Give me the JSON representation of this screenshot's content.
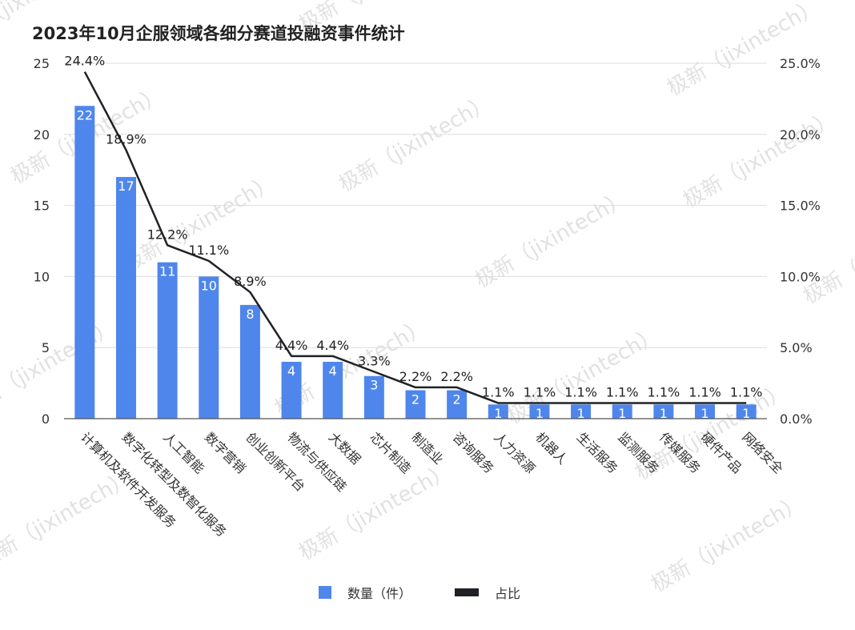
{
  "title": "2023年10月企服领域各细分赛道投融资事件统计",
  "watermark": "极新（jixintech）",
  "colors": {
    "bar": "#4f86ec",
    "line": "#1f2126",
    "grid": "#dddddd",
    "axis": "#555555"
  },
  "legend": [
    {
      "label": "数量（件）",
      "kind": "bar",
      "color": "#4f86ec"
    },
    {
      "label": "占比",
      "kind": "line",
      "color": "#1f2126"
    }
  ],
  "chart_data": {
    "type": "bar",
    "title": "2023年10月企服领域各细分赛道投融资事件统计",
    "categories": [
      "计算机及软件开发服务",
      "数字化转型及数智化服务",
      "人工智能",
      "数字营销",
      "创业创新平台",
      "物流与供应链",
      "大数据",
      "芯片制造",
      "制造业",
      "咨询服务",
      "人力资源",
      "机器人",
      "生活服务",
      "监测服务",
      "传媒服务",
      "硬件产品",
      "网络安全"
    ],
    "series": [
      {
        "name": "数量（件）",
        "type": "bar",
        "axis": "left",
        "values": [
          22,
          17,
          11,
          10,
          8,
          4,
          4,
          3,
          2,
          2,
          1,
          1,
          1,
          1,
          1,
          1,
          1
        ]
      },
      {
        "name": "占比",
        "type": "line",
        "axis": "right",
        "values": [
          24.4,
          18.9,
          12.2,
          11.1,
          8.9,
          4.4,
          4.4,
          3.3,
          2.2,
          2.2,
          1.1,
          1.1,
          1.1,
          1.1,
          1.1,
          1.1,
          1.1
        ],
        "labels": [
          "24.4%",
          "18.9%",
          "12.2%",
          "11.1%",
          "8.9%",
          "4.4%",
          "4.4%",
          "3.3%",
          "2.2%",
          "2.2%",
          "1.1%",
          "1.1%",
          "1.1%",
          "1.1%",
          "1.1%",
          "1.1%",
          "1.1%"
        ]
      }
    ],
    "y_left": {
      "ticks": [
        "0",
        "5",
        "10",
        "15",
        "20",
        "25"
      ],
      "range": [
        0,
        25
      ]
    },
    "y_right": {
      "ticks": [
        "0.0%",
        "5.0%",
        "10.0%",
        "15.0%",
        "20.0%",
        "25.0%"
      ],
      "range": [
        0,
        25
      ]
    },
    "grid": true,
    "legend_position": "bottom"
  }
}
